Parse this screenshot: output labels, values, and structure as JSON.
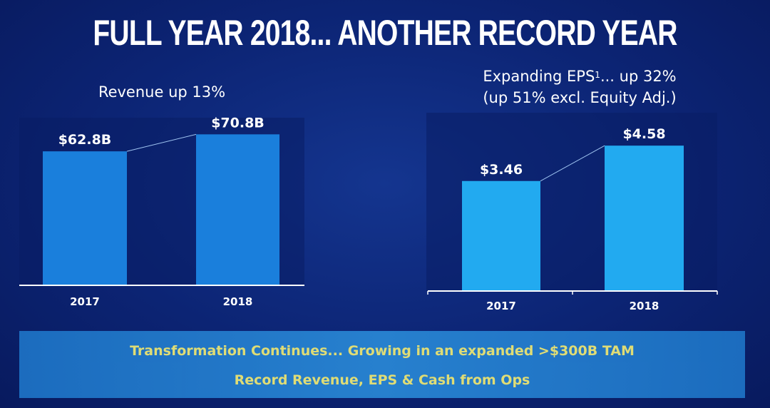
{
  "title": "FULL YEAR 2018... ANOTHER RECORD YEAR",
  "colors": {
    "bar": "#1a7fdc",
    "bar_light": "#22aaf0",
    "banner_text": "#f1ec76"
  },
  "left_panel": {
    "subtitle": "Revenue up 13%"
  },
  "right_panel": {
    "subtitle_line1_pre": "Expanding EPS",
    "subtitle_sup": "1",
    "subtitle_line1_post": "... up 32%",
    "subtitle_line2": "(up 51% excl. Equity Adj.)"
  },
  "banner": {
    "line1": "Transformation Continues... Growing in an expanded >$300B TAM",
    "line2": "Record Revenue, EPS & Cash from Ops"
  },
  "chart_data": [
    {
      "type": "bar",
      "title": "Revenue up 13%",
      "categories": [
        "2017",
        "2018"
      ],
      "values": [
        62.8,
        70.8
      ],
      "labels": [
        "$62.8B",
        "$70.8B"
      ],
      "ylim": [
        0,
        81
      ]
    },
    {
      "type": "bar",
      "title": "Expanding EPS1... up 32%",
      "categories": [
        "2017",
        "2018"
      ],
      "values": [
        3.46,
        4.58
      ],
      "labels": [
        "$3.46",
        "$4.58"
      ],
      "ylim": [
        0,
        5.6
      ]
    }
  ]
}
